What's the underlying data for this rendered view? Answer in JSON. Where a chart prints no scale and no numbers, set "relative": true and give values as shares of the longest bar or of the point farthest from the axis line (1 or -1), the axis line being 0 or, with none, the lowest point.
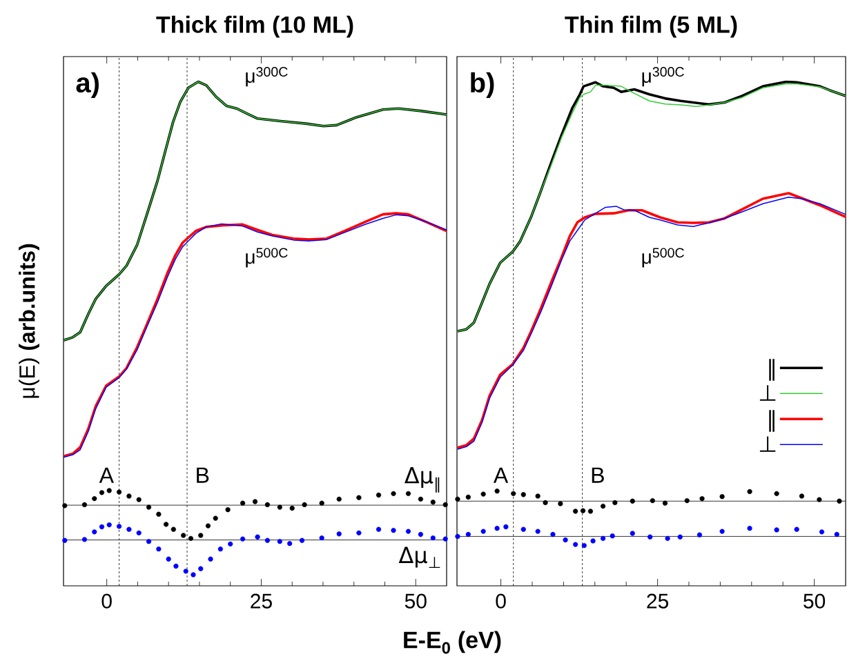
{
  "chart_data": [
    {
      "type": "line",
      "relative": true,
      "title": "Thick film (10 ML)",
      "xlabel": "E-E$_{0}$ (eV)",
      "ylabel": "μ(E) **(arb.units)**",
      "xlim": [
        -7,
        55
      ],
      "xticks": [
        0,
        25,
        50
      ],
      "annotations": [
        "a)",
        "μ$^{300C}$",
        "μ$^{500C}$"
      ],
      "ref_lines": [
        {
          "axis": "x",
          "value": 2,
          "label": "A",
          "line_style": "dashed"
        },
        {
          "axis": "x",
          "value": 13,
          "label": "B",
          "line_style": "dashed"
        },
        {
          "axis": "y",
          "value": 0.16,
          "line_style": "solid"
        },
        {
          "axis": "y",
          "value": 0.091,
          "line_style": "solid"
        }
      ],
      "series": [
        {
          "color": "#000000",
          "x": [
            -7.0,
            -5.5,
            -4.3,
            -3.0,
            -1.8,
            -0.1,
            2.0,
            3.2,
            4.9,
            6.5,
            8.2,
            9.4,
            10.7,
            11.9,
            13.2,
            14.8,
            16.1,
            17.7,
            19.4,
            21.0,
            22.7,
            24.4,
            28.1,
            32.2,
            35.1,
            37.2,
            40.5,
            44.7,
            47.2,
            50.9,
            55.0
          ],
          "values": [
            0.487,
            0.493,
            0.503,
            0.539,
            0.569,
            0.595,
            0.618,
            0.635,
            0.676,
            0.737,
            0.803,
            0.859,
            0.919,
            0.96,
            0.988,
            1.0,
            0.993,
            0.97,
            0.952,
            0.947,
            0.937,
            0.927,
            0.922,
            0.917,
            0.912,
            0.914,
            0.93,
            0.945,
            0.947,
            0.942,
            0.935
          ]
        },
        {
          "color": "#33cc33",
          "x": [
            -7.0,
            -5.5,
            -4.3,
            -3.0,
            -1.8,
            -0.1,
            2.0,
            3.2,
            4.9,
            6.5,
            8.2,
            9.4,
            10.7,
            11.9,
            13.2,
            14.8,
            16.1,
            17.7,
            19.4,
            21.0,
            22.7,
            24.4,
            28.1,
            32.2,
            35.1,
            37.2,
            40.5,
            44.7,
            47.2,
            50.9,
            55.0
          ],
          "values": [
            0.487,
            0.493,
            0.503,
            0.539,
            0.569,
            0.595,
            0.618,
            0.635,
            0.676,
            0.737,
            0.803,
            0.859,
            0.919,
            0.96,
            0.988,
            1.0,
            0.993,
            0.97,
            0.952,
            0.947,
            0.937,
            0.927,
            0.922,
            0.917,
            0.912,
            0.914,
            0.93,
            0.945,
            0.947,
            0.942,
            0.935
          ]
        },
        {
          "color": "#ff0000",
          "x": [
            -7.0,
            -5.5,
            -4.3,
            -3.0,
            -1.8,
            -0.1,
            2.0,
            3.2,
            4.9,
            6.5,
            8.2,
            9.8,
            11.1,
            12.3,
            13.2,
            14.4,
            16.1,
            18.6,
            21.9,
            24.4,
            26.8,
            30.2,
            32.7,
            35.6,
            38.5,
            41.8,
            44.7,
            46.8,
            48.8,
            51.7,
            55.0
          ],
          "values": [
            0.257,
            0.262,
            0.275,
            0.311,
            0.356,
            0.397,
            0.415,
            0.432,
            0.473,
            0.519,
            0.569,
            0.62,
            0.656,
            0.681,
            0.691,
            0.704,
            0.712,
            0.715,
            0.717,
            0.706,
            0.696,
            0.689,
            0.687,
            0.689,
            0.704,
            0.722,
            0.737,
            0.739,
            0.737,
            0.722,
            0.704
          ]
        },
        {
          "color": "#0000ff",
          "x": [
            -7.0,
            -5.5,
            -4.3,
            -3.0,
            -1.8,
            -0.1,
            2.0,
            3.2,
            4.9,
            6.5,
            8.2,
            9.8,
            11.1,
            12.3,
            13.2,
            14.4,
            16.1,
            18.6,
            21.9,
            24.4,
            26.8,
            30.2,
            32.7,
            35.6,
            38.5,
            41.8,
            44.7,
            46.8,
            48.8,
            51.7,
            55.0
          ],
          "values": [
            0.255,
            0.26,
            0.27,
            0.306,
            0.351,
            0.394,
            0.413,
            0.43,
            0.468,
            0.514,
            0.562,
            0.612,
            0.648,
            0.673,
            0.684,
            0.699,
            0.712,
            0.718,
            0.714,
            0.702,
            0.694,
            0.686,
            0.684,
            0.687,
            0.701,
            0.717,
            0.729,
            0.736,
            0.734,
            0.722,
            0.706
          ]
        },
        {
          "type": "scatter",
          "name": "Δμ$_{∥}$",
          "color": "#000000",
          "x": [
            -6.8,
            -3.6,
            -2.0,
            -0.8,
            0.4,
            2.0,
            3.6,
            5.2,
            6.8,
            8.4,
            9.6,
            10.8,
            12.4,
            13.6,
            15.2,
            16.4,
            17.6,
            19.6,
            22.0,
            24.0,
            26.0,
            28.0,
            30.0,
            32.0,
            34.8,
            37.6,
            40.8,
            44.0,
            46.4,
            48.8,
            50.8,
            52.8,
            54.8
          ],
          "values": [
            0.159,
            0.161,
            0.173,
            0.185,
            0.189,
            0.186,
            0.178,
            0.171,
            0.156,
            0.142,
            0.122,
            0.112,
            0.1,
            0.094,
            0.1,
            0.119,
            0.134,
            0.151,
            0.164,
            0.167,
            0.161,
            0.156,
            0.154,
            0.161,
            0.164,
            0.172,
            0.175,
            0.18,
            0.183,
            0.183,
            0.172,
            0.166,
            0.161
          ]
        },
        {
          "type": "scatter",
          "name": "Δμ$_{⊥}$",
          "color": "#0000ff",
          "x": [
            -6.8,
            -3.6,
            -2.0,
            -0.8,
            0.4,
            2.0,
            3.6,
            5.2,
            6.8,
            8.4,
            10.0,
            11.2,
            12.8,
            14.0,
            15.2,
            16.8,
            18.4,
            20.0,
            22.0,
            24.4,
            26.0,
            28.0,
            29.6,
            31.6,
            34.8,
            37.6,
            40.8,
            44.0,
            46.4,
            48.8,
            50.8,
            52.8,
            54.8
          ],
          "values": [
            0.09,
            0.092,
            0.107,
            0.117,
            0.121,
            0.118,
            0.112,
            0.105,
            0.088,
            0.073,
            0.053,
            0.039,
            0.029,
            0.022,
            0.034,
            0.053,
            0.073,
            0.083,
            0.093,
            0.097,
            0.09,
            0.088,
            0.084,
            0.09,
            0.095,
            0.103,
            0.105,
            0.112,
            0.11,
            0.108,
            0.102,
            0.095,
            0.093
          ]
        }
      ]
    },
    {
      "type": "line",
      "relative": true,
      "title": "Thin film (5 ML)",
      "legend": "right",
      "xlim": [
        -7,
        55
      ],
      "xticks": [
        0,
        25,
        50
      ],
      "annotations": [
        "b)",
        "μ$^{300C}$",
        "μ$^{500C}$"
      ],
      "ref_lines": [
        {
          "axis": "x",
          "value": 2,
          "label": "A",
          "line_style": "dashed"
        },
        {
          "axis": "x",
          "value": 13,
          "label": "B",
          "line_style": "dashed"
        },
        {
          "axis": "y",
          "value": 0.168,
          "line_style": "solid"
        },
        {
          "axis": "y",
          "value": 0.098,
          "line_style": "solid"
        }
      ],
      "series": [
        {
          "name": "∥",
          "color": "#000000",
          "x": [
            -6.9,
            -5.5,
            -4.3,
            -3.0,
            -1.8,
            -0.1,
            1.9,
            3.1,
            4.8,
            6.4,
            8.1,
            9.7,
            11.4,
            12.6,
            13.2,
            15.1,
            16.3,
            18.0,
            19.2,
            21.3,
            23.7,
            26.2,
            28.7,
            33.2,
            35.7,
            38.5,
            41.8,
            45.5,
            47.2,
            50.9,
            52.5,
            55.0
          ],
          "values": [
            0.505,
            0.509,
            0.522,
            0.562,
            0.599,
            0.641,
            0.663,
            0.684,
            0.731,
            0.784,
            0.842,
            0.895,
            0.948,
            0.975,
            0.991,
            0.999,
            0.991,
            0.988,
            0.98,
            0.985,
            0.975,
            0.967,
            0.962,
            0.955,
            0.959,
            0.972,
            0.991,
            1.0,
            0.999,
            0.991,
            0.983,
            0.972
          ]
        },
        {
          "name": "⊥",
          "color": "#33cc33",
          "x": [
            -6.9,
            -5.5,
            -4.3,
            -3.0,
            -1.8,
            -0.1,
            1.9,
            3.1,
            4.8,
            6.4,
            8.1,
            9.7,
            11.4,
            12.6,
            13.2,
            14.3,
            15.1,
            17.1,
            19.2,
            21.3,
            23.7,
            26.2,
            28.7,
            31.1,
            33.2,
            35.7,
            38.5,
            41.8,
            45.5,
            47.2,
            50.9,
            52.5,
            55.0
          ],
          "values": [
            0.505,
            0.509,
            0.522,
            0.562,
            0.599,
            0.641,
            0.663,
            0.684,
            0.731,
            0.784,
            0.837,
            0.89,
            0.938,
            0.969,
            0.975,
            0.98,
            0.993,
            0.993,
            0.991,
            0.977,
            0.962,
            0.956,
            0.954,
            0.951,
            0.954,
            0.959,
            0.969,
            0.988,
            0.996,
            0.996,
            0.99,
            0.983,
            0.972
          ]
        },
        {
          "name": "∥",
          "color": "#ff0000",
          "x": [
            -6.9,
            -5.5,
            -4.3,
            -3.0,
            -1.8,
            -0.1,
            1.9,
            3.6,
            4.8,
            6.4,
            8.1,
            9.7,
            11.0,
            12.2,
            13.4,
            15.1,
            18.0,
            20.4,
            22.5,
            25.4,
            28.2,
            30.7,
            33.2,
            35.7,
            38.5,
            41.8,
            45.9,
            48.0,
            50.9,
            55.0
          ],
          "values": [
            0.274,
            0.279,
            0.292,
            0.329,
            0.377,
            0.419,
            0.44,
            0.472,
            0.504,
            0.551,
            0.604,
            0.652,
            0.694,
            0.721,
            0.731,
            0.738,
            0.739,
            0.745,
            0.745,
            0.731,
            0.721,
            0.72,
            0.721,
            0.729,
            0.747,
            0.768,
            0.779,
            0.769,
            0.755,
            0.732
          ]
        },
        {
          "name": "⊥",
          "color": "#0000ff",
          "x": [
            -6.9,
            -5.5,
            -4.3,
            -3.0,
            -1.8,
            -0.1,
            1.9,
            3.6,
            4.8,
            6.4,
            8.1,
            9.7,
            11.0,
            12.2,
            13.4,
            15.1,
            16.7,
            18.4,
            19.6,
            21.3,
            23.7,
            25.4,
            28.2,
            30.7,
            33.2,
            35.7,
            38.5,
            41.8,
            45.9,
            48.0,
            50.9,
            55.0
          ],
          "values": [
            0.271,
            0.276,
            0.287,
            0.324,
            0.372,
            0.414,
            0.438,
            0.467,
            0.499,
            0.544,
            0.596,
            0.647,
            0.684,
            0.705,
            0.726,
            0.739,
            0.751,
            0.753,
            0.746,
            0.745,
            0.731,
            0.726,
            0.716,
            0.713,
            0.72,
            0.729,
            0.742,
            0.758,
            0.771,
            0.768,
            0.758,
            0.737
          ]
        },
        {
          "type": "scatter",
          "color": "#000000",
          "x": [
            -6.9,
            -5.2,
            -2.8,
            -0.6,
            2.0,
            3.6,
            5.9,
            7.1,
            9.5,
            11.9,
            13.1,
            14.3,
            16.3,
            18.2,
            21.0,
            24.2,
            26.2,
            29.7,
            32.1,
            35.3,
            39.7,
            44.0,
            48.0,
            50.8,
            54.0
          ],
          "values": [
            0.172,
            0.176,
            0.182,
            0.188,
            0.183,
            0.181,
            0.178,
            0.165,
            0.163,
            0.148,
            0.149,
            0.148,
            0.158,
            0.165,
            0.168,
            0.169,
            0.164,
            0.169,
            0.173,
            0.177,
            0.187,
            0.183,
            0.178,
            0.171,
            0.168
          ]
        },
        {
          "type": "scatter",
          "color": "#0000ff",
          "x": [
            -6.9,
            -5.2,
            -2.8,
            -0.6,
            0.8,
            3.6,
            5.9,
            8.3,
            10.3,
            11.9,
            13.3,
            14.7,
            16.3,
            17.8,
            21.0,
            23.8,
            26.6,
            28.6,
            31.7,
            35.3,
            39.7,
            44.0,
            47.2,
            51.2,
            53.6
          ],
          "values": [
            0.098,
            0.102,
            0.108,
            0.114,
            0.117,
            0.112,
            0.108,
            0.102,
            0.091,
            0.082,
            0.08,
            0.089,
            0.094,
            0.099,
            0.104,
            0.097,
            0.094,
            0.097,
            0.101,
            0.108,
            0.114,
            0.111,
            0.112,
            0.107,
            0.102
          ]
        }
      ]
    }
  ]
}
